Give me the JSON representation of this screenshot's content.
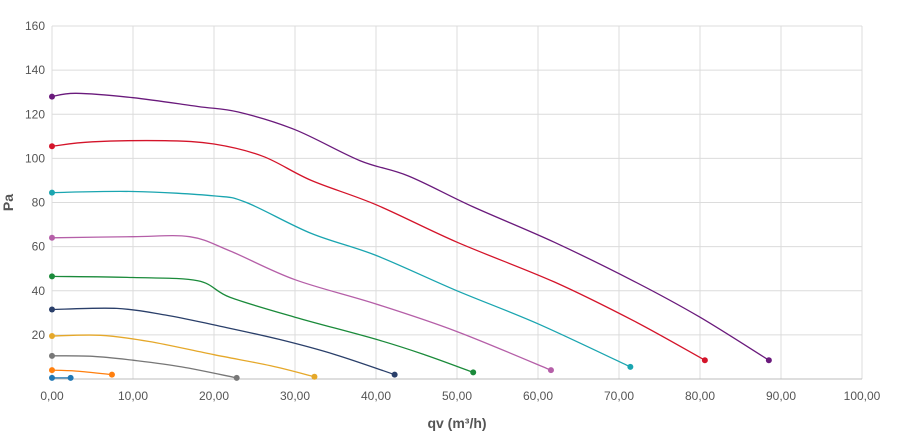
{
  "chart_data": {
    "type": "line",
    "title": "",
    "xlabel": "qv (m³/h)",
    "ylabel": "Pa",
    "xlim": [
      0,
      100
    ],
    "ylim": [
      0,
      160
    ],
    "x_ticks": [
      "0,00",
      "10,00",
      "20,00",
      "30,00",
      "40,00",
      "50,00",
      "60,00",
      "70,00",
      "80,00",
      "90,00",
      "100,00"
    ],
    "y_ticks": [
      "20",
      "40",
      "60",
      "80",
      "100",
      "120",
      "140",
      "160"
    ],
    "grid": true,
    "legend": "none",
    "series": [
      {
        "color": "#1f77b4",
        "points": [
          [
            0,
            0.5
          ],
          [
            2.3,
            0.5
          ]
        ]
      },
      {
        "color": "#ff7f0e",
        "points": [
          [
            0,
            4
          ],
          [
            3,
            3.6
          ],
          [
            7.4,
            2
          ]
        ]
      },
      {
        "color": "#777777",
        "points": [
          [
            0,
            10.5
          ],
          [
            5,
            10.3
          ],
          [
            10,
            8.5
          ],
          [
            16,
            5.5
          ],
          [
            22.8,
            0.5
          ]
        ]
      },
      {
        "color": "#e5a82a",
        "points": [
          [
            0,
            19.5
          ],
          [
            6,
            19.8
          ],
          [
            12,
            17
          ],
          [
            20,
            11
          ],
          [
            27,
            6
          ],
          [
            32.4,
            1
          ]
        ]
      },
      {
        "color": "#2a3f6a",
        "points": [
          [
            0,
            31.5
          ],
          [
            8,
            32
          ],
          [
            14,
            29
          ],
          [
            20,
            24.5
          ],
          [
            28,
            18
          ],
          [
            35,
            11
          ],
          [
            42.3,
            2
          ]
        ]
      },
      {
        "color": "#1a8a3a",
        "points": [
          [
            0,
            46.5
          ],
          [
            10,
            46
          ],
          [
            18,
            44.5
          ],
          [
            22,
            37
          ],
          [
            30,
            28
          ],
          [
            40,
            18
          ],
          [
            46,
            11
          ],
          [
            52,
            3
          ]
        ]
      },
      {
        "color": "#b55fa8",
        "points": [
          [
            0,
            64
          ],
          [
            10,
            64.5
          ],
          [
            17,
            64.5
          ],
          [
            22,
            58
          ],
          [
            30,
            45
          ],
          [
            40,
            34
          ],
          [
            50,
            21.5
          ],
          [
            61.6,
            4
          ]
        ]
      },
      {
        "color": "#1aa5b0",
        "points": [
          [
            0,
            84.5
          ],
          [
            10,
            85
          ],
          [
            20,
            83
          ],
          [
            24,
            80
          ],
          [
            32,
            66
          ],
          [
            40,
            56
          ],
          [
            50,
            40
          ],
          [
            60,
            25
          ],
          [
            71.4,
            5.5
          ]
        ]
      },
      {
        "color": "#d4142a",
        "points": [
          [
            0,
            105.5
          ],
          [
            5,
            107.5
          ],
          [
            14,
            108
          ],
          [
            20,
            106.5
          ],
          [
            26,
            101
          ],
          [
            32,
            90
          ],
          [
            40,
            79
          ],
          [
            50,
            62
          ],
          [
            62,
            44
          ],
          [
            72,
            26
          ],
          [
            80.6,
            8.5
          ]
        ]
      },
      {
        "color": "#6a1a7c",
        "points": [
          [
            0,
            128
          ],
          [
            3,
            129.5
          ],
          [
            10,
            127.5
          ],
          [
            18,
            123.5
          ],
          [
            23,
            121
          ],
          [
            30,
            113
          ],
          [
            38,
            99
          ],
          [
            44,
            92
          ],
          [
            52,
            78
          ],
          [
            62,
            62
          ],
          [
            72,
            44
          ],
          [
            80,
            28
          ],
          [
            88.5,
            8.5
          ]
        ]
      }
    ]
  }
}
